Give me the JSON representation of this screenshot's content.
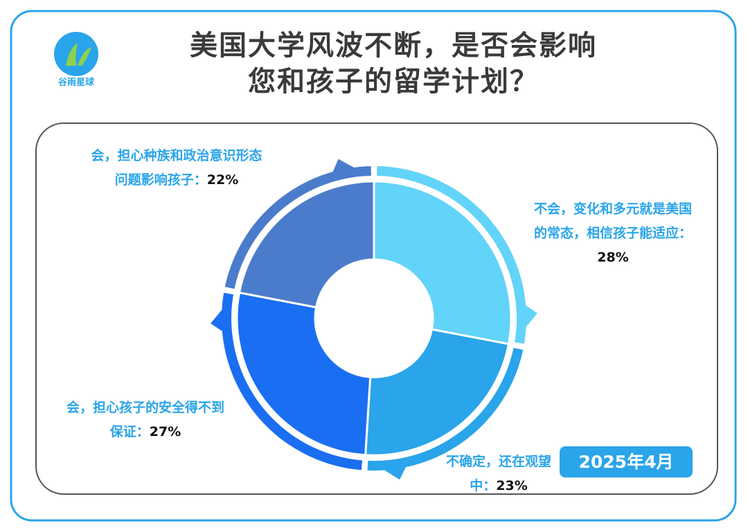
{
  "logo_text": "谷雨星球",
  "date_badge": "2025年4月",
  "chart_data": {
    "type": "pie",
    "title": "美国大学风波不断，是否会影响您和孩子的留学计划？",
    "categories": [
      "不会，变化和多元就是美国的常态，相信孩子能适应：",
      "不确定，还在观望中：",
      "会，担心孩子的安全得不到保证：",
      "会，担心种族和政治意识形态问题影响孩子："
    ],
    "values": [
      28,
      23,
      27,
      22
    ],
    "value_labels": [
      "28%",
      "23%",
      "27%",
      "22%"
    ],
    "colors": [
      "#62d3f9",
      "#2aa4ea",
      "#1a6ef2",
      "#4b7ccc"
    ]
  }
}
